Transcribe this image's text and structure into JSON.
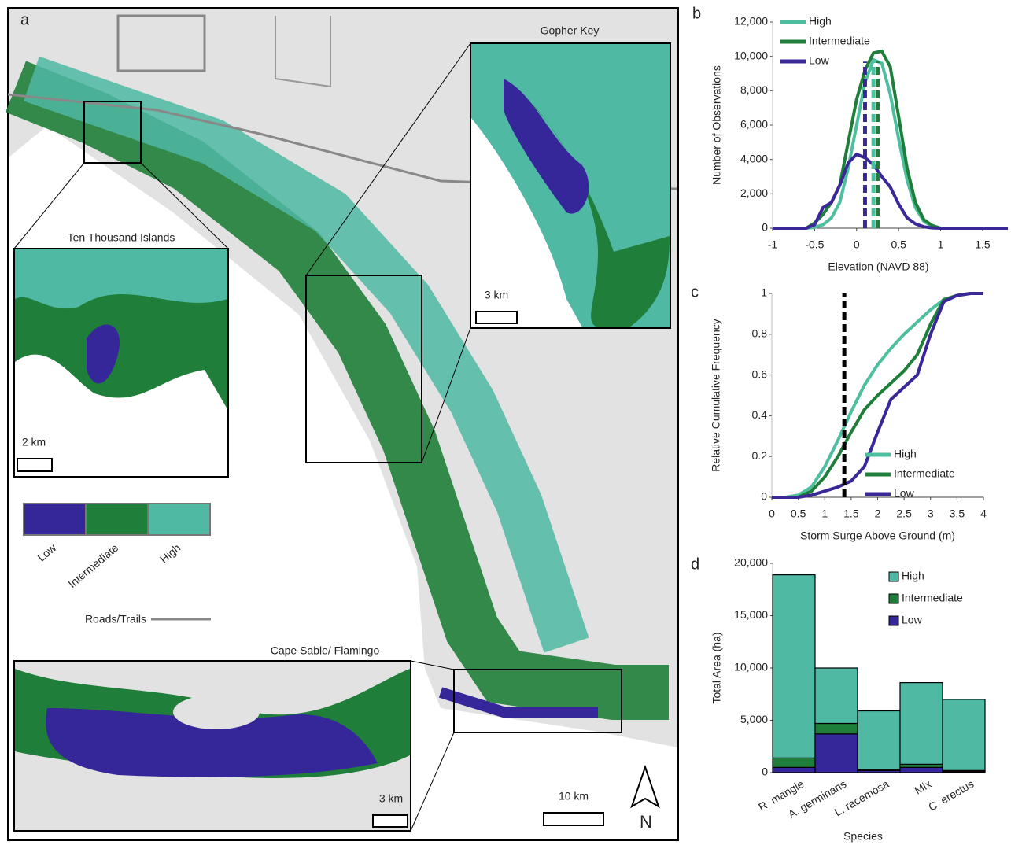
{
  "map": {
    "panel_label": "a",
    "insets": [
      {
        "title": "Ten Thousand Islands",
        "scale": "2 km"
      },
      {
        "title": "Gopher Key",
        "scale": "3 km"
      },
      {
        "title": "Cape Sable/ Flamingo",
        "scale": "3 km"
      }
    ],
    "legend": [
      "Low",
      "Intermediate",
      "High"
    ],
    "legend_colors": [
      "#35279a",
      "#1f7f3a",
      "#4fb9a3"
    ],
    "roads_label": "Roads/Trails",
    "scale": "10 km",
    "north": "N"
  },
  "chart_data": [
    {
      "type": "line",
      "panel_label": "b",
      "y_label": "Number of Observations",
      "x_label": "Elevation (NAVD 88)",
      "x": [
        -1,
        -0.9,
        -0.8,
        -0.7,
        -0.6,
        -0.5,
        -0.4,
        -0.3,
        -0.2,
        -0.1,
        0,
        0.1,
        0.2,
        0.3,
        0.4,
        0.5,
        0.6,
        0.7,
        0.8,
        0.9,
        1,
        1.1,
        1.2,
        1.3,
        1.4,
        1.5,
        1.6,
        1.7,
        1.8
      ],
      "series": [
        {
          "name": "High",
          "color": "#4dbf9f",
          "values": [
            0,
            0,
            0,
            0,
            0,
            50,
            200,
            600,
            1500,
            3500,
            6000,
            8500,
            9800,
            9600,
            7800,
            5200,
            2800,
            1200,
            400,
            100,
            0,
            0,
            0,
            0,
            0,
            0,
            0,
            0,
            0
          ]
        },
        {
          "name": "Intermediate",
          "color": "#1f7f3a",
          "values": [
            0,
            0,
            0,
            0,
            0,
            300,
            800,
            1500,
            2500,
            5000,
            7500,
            9200,
            10200,
            10300,
            9400,
            6500,
            3500,
            1500,
            500,
            150,
            0,
            0,
            0,
            0,
            0,
            0,
            0,
            0,
            0
          ]
        },
        {
          "name": "Low",
          "color": "#3b2898",
          "values": [
            0,
            0,
            0,
            0,
            0,
            200,
            1200,
            1500,
            2500,
            3800,
            4300,
            4100,
            3700,
            3000,
            2400,
            1400,
            600,
            250,
            80,
            20,
            0,
            0,
            0,
            0,
            0,
            0,
            0,
            0,
            0
          ]
        }
      ],
      "vlines": [
        0.1,
        0.2,
        0.25
      ],
      "vline_colors": [
        "#3b2898",
        "#4dbf9f",
        "#1f7f3a"
      ],
      "xlim": [
        -1,
        1.8
      ],
      "xticks": [
        -1,
        -0.5,
        0,
        0.5,
        1,
        1.5
      ],
      "ylim": [
        0,
        12000
      ],
      "yticks": [
        0,
        {
          "value": 2000,
          "label": "2,000"
        },
        {
          "value": 4000,
          "label": "4,000"
        },
        {
          "value": 6000,
          "label": "6,000"
        },
        {
          "value": 8000,
          "label": "8,000"
        },
        {
          "value": 10000,
          "label": "10,000"
        },
        {
          "value": 12000,
          "label": "12,000"
        }
      ],
      "legend": "upper left"
    },
    {
      "type": "line",
      "panel_label": "c",
      "y_label": "Relative Cumulative Frequency",
      "x_label": "Storm Surge Above Ground (m)",
      "x": [
        0,
        0.25,
        0.5,
        0.75,
        1,
        1.25,
        1.5,
        1.75,
        2,
        2.25,
        2.5,
        2.75,
        3,
        3.25,
        3.5,
        3.75,
        4
      ],
      "series": [
        {
          "name": "High",
          "color": "#4dbf9f",
          "values": [
            0,
            0,
            0.01,
            0.05,
            0.15,
            0.28,
            0.42,
            0.55,
            0.65,
            0.73,
            0.8,
            0.86,
            0.92,
            0.97,
            0.99,
            1,
            1
          ]
        },
        {
          "name": "Intermediate",
          "color": "#1f7f3a",
          "values": [
            0,
            0,
            0,
            0.03,
            0.1,
            0.2,
            0.32,
            0.43,
            0.5,
            0.56,
            0.62,
            0.7,
            0.85,
            0.97,
            0.99,
            1,
            1
          ]
        },
        {
          "name": "Low",
          "color": "#3b2898",
          "values": [
            0,
            0,
            0,
            0.01,
            0.03,
            0.05,
            0.08,
            0.15,
            0.32,
            0.48,
            0.54,
            0.6,
            0.8,
            0.96,
            0.99,
            1,
            1
          ]
        }
      ],
      "vlines": [
        1.37
      ],
      "vline_colors": [
        "#000000"
      ],
      "xlim": [
        0,
        4
      ],
      "xticks": [
        0,
        0.5,
        1,
        1.5,
        2,
        2.5,
        3,
        3.5,
        4
      ],
      "ylim": [
        0,
        1
      ],
      "yticks": [
        0,
        0.2,
        0.4,
        0.6,
        0.8,
        1
      ],
      "legend": "lower right"
    },
    {
      "type": "bar",
      "stacked": true,
      "panel_label": "d",
      "y_label": "Total Area (ha)",
      "x_label": "Species",
      "categories": [
        "R. mangle",
        "A. germinans",
        "L. racemosa",
        "Mix",
        "C. erectus"
      ],
      "series": [
        {
          "name": "Low",
          "color": "#35279a",
          "values": [
            500,
            3700,
            200,
            500,
            100
          ]
        },
        {
          "name": "Intermediate",
          "color": "#1f7f3a",
          "values": [
            900,
            1000,
            100,
            300,
            100
          ]
        },
        {
          "name": "High",
          "color": "#4fb9a3",
          "values": [
            17500,
            5300,
            5600,
            7800,
            6800
          ]
        }
      ],
      "ylim": [
        0,
        20000
      ],
      "yticks": [
        0,
        {
          "value": 5000,
          "label": "5,000"
        },
        {
          "value": 10000,
          "label": "10,000"
        },
        {
          "value": 15000,
          "label": "15,000"
        },
        {
          "value": 20000,
          "label": "20,000"
        }
      ],
      "legend": "upper right"
    }
  ]
}
